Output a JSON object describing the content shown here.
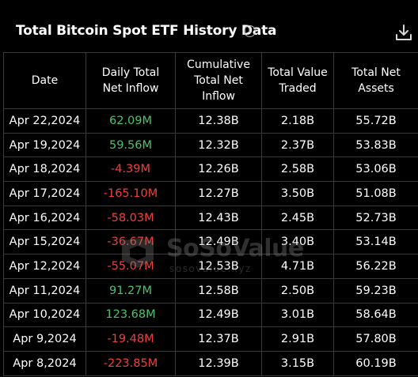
{
  "header": {
    "title": "Total Bitcoin Spot ETF History Data",
    "info_icon": "info-icon",
    "download_icon": "download-icon"
  },
  "table": {
    "columns": [
      "Date",
      "Daily Total Net Inflow",
      "Cumulative Total Net Inflow",
      "Total Value Traded",
      "Total Net Assets"
    ],
    "rows": [
      {
        "date": "Apr 22,2024",
        "daily": "62.09M",
        "cumulative": "12.38B",
        "traded": "2.18B",
        "assets": "55.72B",
        "sign": "pos"
      },
      {
        "date": "Apr 19,2024",
        "daily": "59.56M",
        "cumulative": "12.32B",
        "traded": "2.37B",
        "assets": "53.83B",
        "sign": "pos"
      },
      {
        "date": "Apr 18,2024",
        "daily": "-4.39M",
        "cumulative": "12.26B",
        "traded": "2.58B",
        "assets": "53.06B",
        "sign": "neg"
      },
      {
        "date": "Apr 17,2024",
        "daily": "-165.10M",
        "cumulative": "12.27B",
        "traded": "3.50B",
        "assets": "51.08B",
        "sign": "neg"
      },
      {
        "date": "Apr 16,2024",
        "daily": "-58.03M",
        "cumulative": "12.43B",
        "traded": "2.45B",
        "assets": "52.73B",
        "sign": "neg"
      },
      {
        "date": "Apr 15,2024",
        "daily": "-36.67M",
        "cumulative": "12.49B",
        "traded": "3.40B",
        "assets": "53.14B",
        "sign": "neg"
      },
      {
        "date": "Apr 12,2024",
        "daily": "-55.07M",
        "cumulative": "12.53B",
        "traded": "4.71B",
        "assets": "56.22B",
        "sign": "neg"
      },
      {
        "date": "Apr 11,2024",
        "daily": "91.27M",
        "cumulative": "12.58B",
        "traded": "2.50B",
        "assets": "59.23B",
        "sign": "pos"
      },
      {
        "date": "Apr 10,2024",
        "daily": "123.68M",
        "cumulative": "12.49B",
        "traded": "3.01B",
        "assets": "58.64B",
        "sign": "pos"
      },
      {
        "date": "Apr 9,2024",
        "daily": "-19.48M",
        "cumulative": "12.37B",
        "traded": "2.91B",
        "assets": "57.80B",
        "sign": "neg"
      },
      {
        "date": "Apr 8,2024",
        "daily": "-223.85M",
        "cumulative": "12.39B",
        "traded": "3.15B",
        "assets": "60.19B",
        "sign": "neg"
      }
    ]
  },
  "watermark": {
    "brand": "SoSoValue",
    "url": "sosovalue.xyz"
  },
  "colors": {
    "background": "#000000",
    "positive": "#4cc36c",
    "negative": "#f0403a",
    "border": "#3a3a3a"
  }
}
